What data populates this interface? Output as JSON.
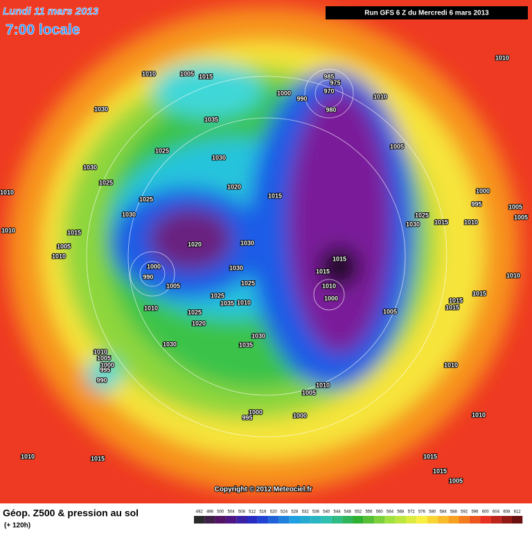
{
  "header": {
    "date": "Lundi 11 mars 2013",
    "time": "7:00 locale",
    "run": "Run GFS 6 Z du Mercredi 6 mars 2013"
  },
  "map": {
    "copyright": "Copyright © 2012 Meteociel.fr",
    "pressure_labels": [
      "1010",
      "1005",
      "1015",
      "1010",
      "985",
      "975",
      "970",
      "1000",
      "990",
      "980",
      "1010",
      "1030",
      "1035",
      "1025",
      "1030",
      "1005",
      "1030",
      "1025",
      "1020",
      "1015",
      "1000",
      "995",
      "1005",
      "1010",
      "1025",
      "1030",
      "1025",
      "1030",
      "1015",
      "1010",
      "1005",
      "1010",
      "1015",
      "1020",
      "1030",
      "1005",
      "1010",
      "1015",
      "1000",
      "990",
      "1030",
      "1015",
      "1010",
      "1005",
      "1025",
      "1010",
      "1000",
      "1025",
      "1035",
      "1010",
      "1015",
      "1015",
      "1010",
      "1025",
      "1005",
      "1015",
      "1020",
      "1030",
      "1035",
      "1030",
      "1010",
      "1005",
      "1000",
      "995",
      "990",
      "1010",
      "1010",
      "1005",
      "1000",
      "995",
      "1000",
      "1010",
      "1010",
      "1015",
      "1015",
      "1015",
      "1005"
    ]
  },
  "footer": {
    "title": "Géop. Z500 & pression au sol",
    "lead": "(+ 120h)",
    "scale": [
      492,
      496,
      500,
      504,
      508,
      512,
      516,
      520,
      524,
      528,
      532,
      536,
      540,
      544,
      548,
      552,
      556,
      560,
      564,
      568,
      572,
      576,
      580,
      584,
      588,
      592,
      596,
      600,
      604,
      608,
      612
    ]
  }
}
